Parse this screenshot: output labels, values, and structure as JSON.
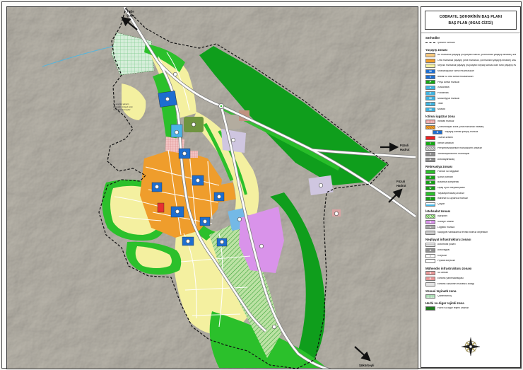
{
  "title": {
    "line1": "CƏBRAYIL ŞƏHƏRİNİN BAŞ PLANI",
    "line2": "BAŞ PLAN (ƏSAS CİZGİ)"
  },
  "map": {
    "arrows": {
      "top": {
        "line1": "Tuğa",
        "line2": "Şuşa"
      },
      "east1": {
        "line1": "Füzuli",
        "line2": "Hadrut"
      },
      "east2": {
        "line1": "Füzuli",
        "line2": "Hadrut"
      },
      "southeast": {
        "label": "Şükürbəyli"
      }
    },
    "annotation": {
      "l1": "Bu ərazilər şəhərin",
      "l2": "perspektiv inkişafı üçün",
      "l3": "nəzərdə tutulmuşdur"
    }
  },
  "legend": {
    "sections": [
      {
        "title": "Sərhədlər",
        "items": [
          {
            "t": "dash",
            "label": "Şəhərin sərhədi"
          }
        ]
      },
      {
        "title": "Yaşayış zonası",
        "items": [
          {
            "t": "solid",
            "c": "#f6c87e",
            "label": "Az mərtəbəli yaşayış (həyətyanı sahəli, çoxmənzilli yaşayış binaları) əraziləri"
          },
          {
            "t": "solid",
            "c": "#ef9d2c",
            "label": "Orta mərtəbəli yaşayış (orta mərtəbəli, çoxmənzilli yaşayış binaları) əraziləri"
          },
          {
            "t": "solid",
            "c": "#f4f0a0",
            "label": "Seyrək mərtəbəli yaşayış (həyətyanı torpaq sahəsi olan fərdi yaşayış evləri) əraziləri"
          },
          {
            "t": "solid",
            "c": "#1d6ed0",
            "g": "M",
            "gn": "preschool-icon",
            "label": "Məktəbəqədər təhsil müəssisələri"
          },
          {
            "t": "solid",
            "c": "#1d6ed0",
            "g": "T",
            "gn": "school-icon",
            "label": "İbtidai və orta təhsil müəssisələri"
          },
          {
            "t": "solid",
            "c": "#16a816",
            "g": "P",
            "gn": "vocational-icon",
            "label": "Peşə təhsili mərkəzi"
          },
          {
            "t": "solid",
            "c": "#3fb3e0",
            "g": "+",
            "gn": "hospital-icon",
            "label": "Xəstəxana"
          },
          {
            "t": "solid",
            "c": "#3fb3e0",
            "g": "P",
            "gn": "clinic-icon",
            "label": "Poliklinika"
          },
          {
            "t": "solid",
            "c": "#3fb3e0",
            "g": "M",
            "gn": "culture-icon",
            "label": "Mədəniyyət mərkəzi"
          },
          {
            "t": "solid",
            "c": "#3fb3e0",
            "g": "T",
            "gn": "theatre-icon",
            "label": "Teatr"
          },
          {
            "t": "solid",
            "c": "#3fb3e0",
            "g": "M",
            "gn": "mosque-icon",
            "label": "Məscid"
          }
        ]
      },
      {
        "title": "İctimai işgüzar zona",
        "items": [
          {
            "t": "grid",
            "c": "#f3c4c4",
            "ln": "#d87c7c",
            "label": "İnzibati mərkəz"
          },
          {
            "t": "hatch",
            "c": "#ef9d2c",
            "ln": "#b06a10",
            "label": "Çoxfunksiyalı zona (orta mərtəbəli binalar)"
          },
          {
            "t": "solid",
            "c": "#1d6ed0",
            "g": "X",
            "gn": "mixed-center-icon",
            "ind": true,
            "label": "Yaşayış-ictimai qarışıq mərkəz"
          },
          {
            "t": "solid",
            "c": "#ee2020",
            "label": "Ticarət ərazisi"
          },
          {
            "t": "solid",
            "c": "#16a816",
            "g": "İ",
            "gn": "sport-icon",
            "label": "İdman əraziləri"
          },
          {
            "t": "hatch",
            "c": "#d2d2d2",
            "ln": "#8a8a8a",
            "label": "Perspektivləşdirilən məhəllələrin əraziləri"
          },
          {
            "t": "solid",
            "c": "#8f8f8f",
            "g": "Y",
            "gn": "fuel-station-icon",
            "label": "Yanacaqdoldurma məntəqəsi"
          },
          {
            "t": "solid",
            "c": "#8f8f8f",
            "g": "P",
            "gn": "parking-icon",
            "label": "Avtodayanacaq"
          }
        ]
      },
      {
        "title": "Rekreasiya zonası",
        "items": [
          {
            "t": "solid",
            "c": "#2bc02b",
            "label": "Parklar və bağçalar"
          },
          {
            "t": "solid",
            "c": "#169e16",
            "g": "P",
            "gn": "city-park-icon",
            "label": "Şəhər parkları"
          },
          {
            "t": "solid",
            "c": "#169e16",
            "g": "B",
            "gn": "botanic-icon",
            "label": "Botanika kompleksi"
          },
          {
            "t": "solid",
            "c": "#169e16",
            "g": "U",
            "gn": "playground-icon",
            "label": "Uşaq oyun meydançaları"
          },
          {
            "t": "solid",
            "c": "#2bc02b",
            "label": "Yaşıllaşdırılacaq ərazilər"
          },
          {
            "t": "solid",
            "c": "#169e16",
            "g": "İ",
            "gn": "entertainment-icon",
            "label": "İstirahət və əyləncə mərkəzi"
          },
          {
            "t": "river",
            "label": "Çaylar"
          }
        ]
      },
      {
        "title": "İstehsalat zonası",
        "items": [
          {
            "t": "hatch",
            "c": "#bce2a4",
            "ln": "#2f9e2f",
            "g": "A",
            "gn": "agropark-icon",
            "label": "Aqropark"
          },
          {
            "t": "solid",
            "c": "#d993ea",
            "g": "S",
            "gn": "industry-icon",
            "label": "Sənaye ərazisi"
          },
          {
            "t": "solid",
            "c": "#a8a8a8",
            "g": "L",
            "gn": "logistics-icon",
            "label": "Logistik mərkəz"
          },
          {
            "t": "solid",
            "c": "#c8c8c8",
            "label": "Nəqliyyat vasitələrinə texniki xidmət obyektləri"
          }
        ]
      },
      {
        "title": "Nəqliyyat infrastrukturu zonası",
        "items": [
          {
            "t": "road",
            "label": "Avtomobil yolları"
          },
          {
            "t": "solid",
            "c": "#8f8f8f",
            "g": "A",
            "gn": "bus-station-icon",
            "label": "Avtovağzal"
          },
          {
            "t": "solid",
            "c": "#ffffff",
            "g": "∩",
            "gcol": "#333333",
            "gn": "bridge-icon",
            "label": "Körpülər"
          },
          {
            "t": "solid",
            "c": "#ffffff",
            "label": "Piyada körpüləri"
          }
        ]
      },
      {
        "title": "Mühəndis infrastrukturu zonası",
        "items": [
          {
            "t": "solid",
            "c": "#e89898",
            "g": "S",
            "gn": "reservoir-icon",
            "label": "Su anbarı"
          },
          {
            "t": "solid",
            "c": "#e89898",
            "g": "E",
            "gn": "substation-icon",
            "label": "Elektrik yarımstansiyası"
          },
          {
            "t": "solid",
            "c": "#e4e4e4",
            "label": "Elektrik xətlərinin mühafizə zolağı"
          }
        ]
      },
      {
        "title": "Xüsusi təyinatlı zona",
        "items": [
          {
            "t": "grid",
            "c": "#d6eeda",
            "ln": "#7cc98c",
            "label": "Qəbiristanlıq"
          }
        ]
      },
      {
        "title": "Hərbi və digər rejimli zona",
        "items": [
          {
            "t": "solid",
            "c": "#1f7a1f",
            "label": "Hərbi və digər rejimli ərazilər"
          }
        ]
      }
    ]
  },
  "colors": {
    "terrain": "#b6b2a8",
    "low_rise": "#f6c87e",
    "mid_rise": "#ef9d2c",
    "detached": "#f4f0a0",
    "parks": "#2bc02b",
    "forest": "#0f9e1c",
    "industry": "#d993ea",
    "education_blue": "#1d6ed0",
    "health_teal": "#3fb3e0",
    "reserve_lavender": "#cfc6e0",
    "agro": "#bce2a4",
    "military": "#1f7a1f",
    "river": "#45b8e8",
    "boundary": "#111111"
  }
}
